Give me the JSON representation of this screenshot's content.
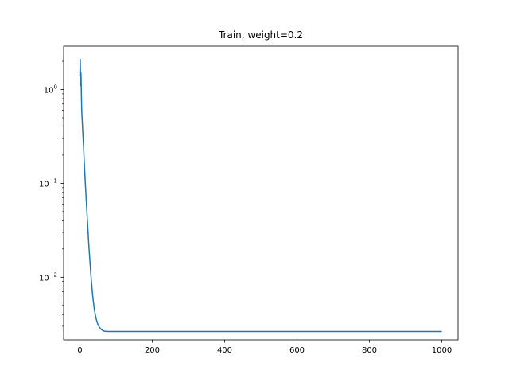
{
  "chart_data": {
    "type": "line",
    "title": "Train, weight=0.2",
    "xlabel": "",
    "ylabel": "",
    "yscale": "log",
    "xlim": [
      -45,
      1045
    ],
    "ylim": [
      0.00215,
      2.9
    ],
    "grid": false,
    "legend": "none",
    "xticks": [
      0,
      200,
      400,
      600,
      800,
      1000
    ],
    "xtick_labels": [
      "0",
      "200",
      "400",
      "600",
      "800",
      "1000"
    ],
    "yticks": [
      1,
      0.1,
      0.01
    ],
    "ytick_labels": [
      "10^0",
      "10^-1",
      "10^-2"
    ],
    "series": [
      {
        "color": "#1f77b4",
        "x": [
          0,
          1,
          2,
          3,
          5,
          8,
          10,
          12,
          15,
          20,
          25,
          30,
          35,
          40,
          45,
          50,
          55,
          60,
          65,
          70,
          80,
          90,
          100,
          120,
          150,
          200,
          300,
          400,
          500,
          600,
          700,
          800,
          900,
          1000
        ],
        "y": [
          1.4,
          2.1,
          1.1,
          1.5,
          0.6,
          0.35,
          0.25,
          0.17,
          0.1,
          0.045,
          0.021,
          0.011,
          0.0065,
          0.0045,
          0.0036,
          0.0031,
          0.0029,
          0.00275,
          0.00268,
          0.00265,
          0.00264,
          0.00264,
          0.00264,
          0.00264,
          0.00264,
          0.00264,
          0.00264,
          0.00264,
          0.00264,
          0.00264,
          0.00264,
          0.00264,
          0.00264,
          0.00264
        ]
      }
    ]
  }
}
